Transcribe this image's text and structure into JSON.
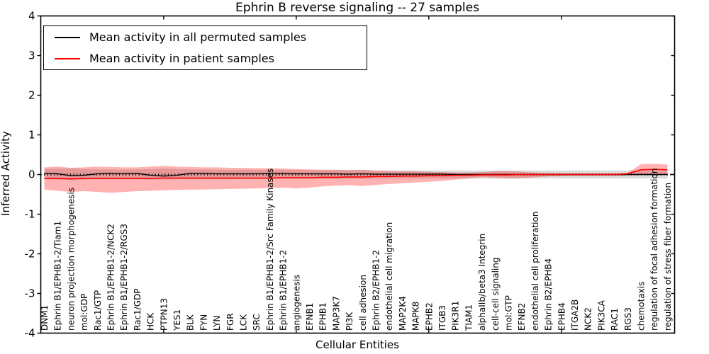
{
  "title": "Ephrin B reverse signaling -- 27 samples",
  "axes": {
    "ylabel": "Inferred Activity",
    "xlabel": "Cellular Entities",
    "yticks": [
      "4",
      "3",
      "2",
      "1",
      "0",
      "-1",
      "-2",
      "-3",
      "-4"
    ],
    "ylim": [
      -4,
      4
    ]
  },
  "legend": {
    "items": [
      {
        "label": "Mean activity in all permuted samples",
        "color": "#000000"
      },
      {
        "label": "Mean activity in patient samples",
        "color": "#ff0000"
      }
    ],
    "position": "upper left"
  },
  "colors": {
    "permuted_line": "#000000",
    "patient_line": "#ff0000",
    "permuted_band": "rgba(130,130,130,0.28)",
    "patient_band": "rgba(255,0,0,0.30)",
    "zero_line": "#000000"
  },
  "chart_data": {
    "type": "line",
    "title": "Ephrin B reverse signaling -- 27 samples",
    "xlabel": "Cellular Entities",
    "ylabel": "Inferred Activity",
    "ylim": [
      -4,
      4
    ],
    "grid": false,
    "legend_position": "upper left",
    "zero_reference_line": true,
    "top_ticks_at_x": [
      10,
      20,
      30,
      40
    ],
    "categories": [
      "DNM1",
      "Ephrin B1/EPHB1-2/Tiam1",
      "neuron projection morphogenesis",
      "mol:GDP",
      "Rac1/GTP",
      "Ephrin B1/EPHB1-2/NCK2",
      "Ephrin B1/EPHB1-2/RGS3",
      "Rac1/GDP",
      "HCK",
      "PTPN13",
      "YES1",
      "BLK",
      "FYN",
      "LYN",
      "FGR",
      "LCK",
      "SRC",
      "Ephrin B1/EPHB1-2/Src Family Kinases",
      "Ephrin B1/EPHB1-2",
      "angiogenesis",
      "EFNB1",
      "EPHB1",
      "MAP3K7",
      "PI3K",
      "cell adhesion",
      "Ephrin B2/EPHB1-2",
      "endothelial cell migration",
      "MAP2K4",
      "MAPK8",
      "EPHB2",
      "ITGB3",
      "PIK3R1",
      "TIAM1",
      "alphaIIb/beta3 Integrin",
      "cell-cell signaling",
      "mol:GTP",
      "EFNB2",
      "endothelial cell proliferation",
      "Ephrin B2/EPHB4",
      "EPHB4",
      "ITGA2B",
      "NCK2",
      "PIK3CA",
      "RAC1",
      "RGS3",
      "chemotaxis",
      "regulation of focal adhesion formation",
      "regulation of stress fiber formation"
    ],
    "series": [
      {
        "id": "permuted-mean",
        "name": "Mean activity in all permuted samples",
        "kind": "line",
        "color": "#000000",
        "values": [
          0.03,
          0.02,
          -0.03,
          -0.02,
          0.02,
          0.03,
          0.02,
          0.03,
          -0.02,
          -0.04,
          -0.02,
          0.03,
          0.03,
          0.02,
          0.02,
          0.02,
          0.02,
          0.03,
          0.03,
          0.02,
          0.02,
          0.02,
          0.02,
          0.01,
          0.02,
          0.01,
          0.01,
          0.01,
          0.01,
          0.01,
          0.01,
          0.0,
          0.0,
          0.0,
          0.0,
          0.0,
          0.0,
          0.0,
          0.0,
          0.0,
          0.0,
          0.0,
          0.0,
          0.0,
          0.0,
          0.0,
          0.0,
          0.0
        ]
      },
      {
        "id": "patient-mean",
        "name": "Mean activity in patient samples",
        "kind": "line",
        "color": "#ff0000",
        "values": [
          -0.1,
          -0.1,
          -0.11,
          -0.1,
          -0.1,
          -0.1,
          -0.1,
          -0.1,
          -0.1,
          -0.09,
          -0.09,
          -0.09,
          -0.09,
          -0.09,
          -0.09,
          -0.09,
          -0.09,
          -0.09,
          -0.08,
          -0.08,
          -0.08,
          -0.07,
          -0.07,
          -0.06,
          -0.06,
          -0.05,
          -0.05,
          -0.04,
          -0.04,
          -0.03,
          -0.03,
          -0.02,
          -0.02,
          -0.01,
          -0.01,
          -0.01,
          0.0,
          0.0,
          0.0,
          0.0,
          0.0,
          0.0,
          0.0,
          0.0,
          0.02,
          0.12,
          0.13,
          0.12
        ]
      },
      {
        "id": "permuted-band",
        "name": "Permuted samples activity range",
        "kind": "band",
        "color": "rgba(130,130,130,0.28)",
        "upper": [
          0.14,
          0.15,
          0.16,
          0.14,
          0.13,
          0.13,
          0.12,
          0.13,
          0.14,
          0.15,
          0.14,
          0.13,
          0.13,
          0.12,
          0.12,
          0.12,
          0.12,
          0.12,
          0.12,
          0.11,
          0.11,
          0.11,
          0.11,
          0.11,
          0.11,
          0.1,
          0.1,
          0.1,
          0.1,
          0.1,
          0.1,
          0.1,
          0.1,
          0.1,
          0.1,
          0.1,
          0.1,
          0.1,
          0.1,
          0.1,
          0.1,
          0.1,
          0.1,
          0.1,
          0.1,
          0.1,
          0.1,
          0.1
        ],
        "lower": [
          -0.12,
          -0.13,
          -0.14,
          -0.13,
          -0.12,
          -0.12,
          -0.12,
          -0.12,
          -0.13,
          -0.13,
          -0.12,
          -0.12,
          -0.12,
          -0.12,
          -0.12,
          -0.11,
          -0.11,
          -0.11,
          -0.11,
          -0.11,
          -0.11,
          -0.11,
          -0.11,
          -0.11,
          -0.11,
          -0.1,
          -0.1,
          -0.1,
          -0.1,
          -0.1,
          -0.1,
          -0.1,
          -0.1,
          -0.1,
          -0.1,
          -0.1,
          -0.1,
          -0.1,
          -0.1,
          -0.1,
          -0.1,
          -0.1,
          -0.1,
          -0.1,
          -0.1,
          -0.1,
          -0.1,
          -0.1
        ]
      },
      {
        "id": "patient-band",
        "name": "Patient samples activity range",
        "kind": "band",
        "color": "rgba(255,0,0,0.30)",
        "upper": [
          0.18,
          0.2,
          0.17,
          0.18,
          0.2,
          0.19,
          0.18,
          0.18,
          0.2,
          0.22,
          0.2,
          0.19,
          0.18,
          0.18,
          0.17,
          0.17,
          0.16,
          0.16,
          0.15,
          0.14,
          0.13,
          0.12,
          0.12,
          0.11,
          0.12,
          0.1,
          0.09,
          0.08,
          0.08,
          0.07,
          0.06,
          0.05,
          0.05,
          0.06,
          0.08,
          0.09,
          0.07,
          0.05,
          0.04,
          0.03,
          0.03,
          0.03,
          0.03,
          0.03,
          0.04,
          0.26,
          0.27,
          0.25
        ],
        "lower": [
          -0.38,
          -0.41,
          -0.44,
          -0.42,
          -0.44,
          -0.46,
          -0.44,
          -0.42,
          -0.41,
          -0.4,
          -0.39,
          -0.38,
          -0.38,
          -0.37,
          -0.36,
          -0.36,
          -0.35,
          -0.34,
          -0.33,
          -0.35,
          -0.33,
          -0.3,
          -0.28,
          -0.27,
          -0.29,
          -0.26,
          -0.24,
          -0.22,
          -0.2,
          -0.18,
          -0.16,
          -0.13,
          -0.1,
          -0.07,
          -0.08,
          -0.1,
          -0.09,
          -0.07,
          -0.05,
          -0.04,
          -0.03,
          -0.03,
          -0.03,
          -0.03,
          -0.02,
          0.0,
          0.01,
          0.01
        ]
      }
    ]
  }
}
